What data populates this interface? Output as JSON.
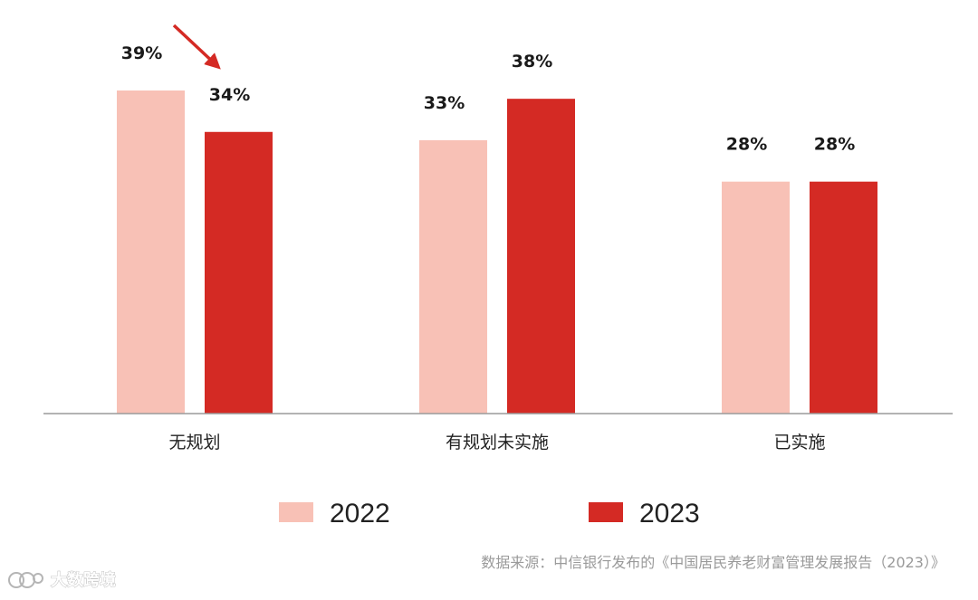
{
  "chart_data": {
    "type": "bar",
    "categories": [
      "无规划",
      "有规划未实施",
      "已实施"
    ],
    "series": [
      {
        "name": "2022",
        "values": [
          39,
          33,
          28
        ],
        "color": "#f8c1b6"
      },
      {
        "name": "2023",
        "values": [
          34,
          38,
          28
        ],
        "color": "#d42a24"
      }
    ],
    "value_suffix": "%",
    "ylim": [
      0,
      39
    ],
    "legend_position": "bottom-center",
    "grid": false,
    "annotation": {
      "type": "arrow",
      "from_category": 0,
      "color": "#d42a24"
    },
    "source": "数据来源：中信银行发布的《中国居民养老财富管理发展报告（2023）》"
  },
  "watermark": {
    "text": "大数跨境",
    "icon": "brand-logo-icon"
  }
}
